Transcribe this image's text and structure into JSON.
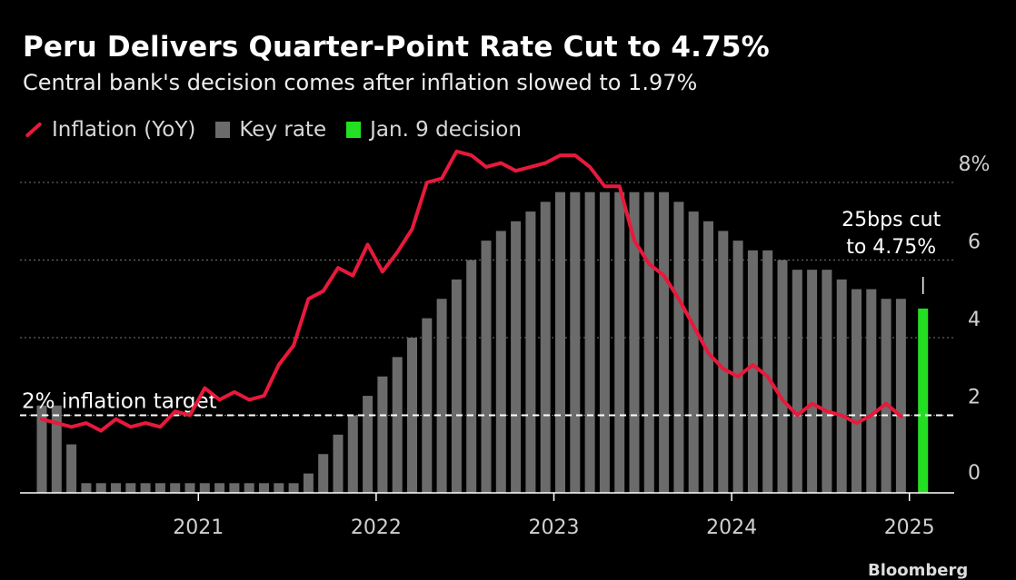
{
  "header": {
    "title": "Peru Delivers Quarter-Point Rate Cut to 4.75%",
    "subtitle": "Central bank's decision comes after inflation slowed to 1.97%"
  },
  "legend": {
    "items": [
      {
        "label": "Inflation (YoY)",
        "kind": "line",
        "color": "#e8193c"
      },
      {
        "label": "Key rate",
        "kind": "bar",
        "color": "#6b6b6b"
      },
      {
        "label": "Jan. 9 decision",
        "kind": "bar",
        "color": "#22e021"
      }
    ]
  },
  "footer": {
    "fragment": "Bloomberg"
  },
  "chart_data": {
    "type": "bar",
    "title": "Peru Delivers Quarter-Point Rate Cut to 4.75%",
    "ylim": [
      0,
      8
    ],
    "yticks": [
      {
        "value": 0,
        "label": "0"
      },
      {
        "value": 2,
        "label": "2"
      },
      {
        "value": 4,
        "label": "4"
      },
      {
        "value": 6,
        "label": "6"
      },
      {
        "value": 8,
        "label": "8%"
      }
    ],
    "xticks": [
      {
        "date": "2021-01",
        "label": "2021"
      },
      {
        "date": "2022-01",
        "label": "2022"
      },
      {
        "date": "2023-01",
        "label": "2023"
      },
      {
        "date": "2024-01",
        "label": "2024"
      },
      {
        "date": "2025-01",
        "label": "2025"
      }
    ],
    "grid": true,
    "legend_position": "top-left",
    "target": {
      "value": 2,
      "label": "2% inflation target"
    },
    "annotation": {
      "text_lines": [
        "25bps cut",
        "to 4.75%"
      ],
      "date": "2025-01"
    },
    "x_range": [
      "2020-02",
      "2025-02"
    ],
    "series": [
      {
        "name": "Key rate",
        "type": "bar",
        "color": "#6b6b6b",
        "x": [
          "2020-02",
          "2020-03",
          "2020-04",
          "2020-05",
          "2020-06",
          "2020-07",
          "2020-08",
          "2020-09",
          "2020-10",
          "2020-11",
          "2020-12",
          "2021-01",
          "2021-02",
          "2021-03",
          "2021-04",
          "2021-05",
          "2021-06",
          "2021-07",
          "2021-08",
          "2021-09",
          "2021-10",
          "2021-11",
          "2021-12",
          "2022-01",
          "2022-02",
          "2022-03",
          "2022-04",
          "2022-05",
          "2022-06",
          "2022-07",
          "2022-08",
          "2022-09",
          "2022-10",
          "2022-11",
          "2022-12",
          "2023-01",
          "2023-02",
          "2023-03",
          "2023-04",
          "2023-05",
          "2023-06",
          "2023-07",
          "2023-08",
          "2023-09",
          "2023-10",
          "2023-11",
          "2023-12",
          "2024-01",
          "2024-02",
          "2024-03",
          "2024-04",
          "2024-05",
          "2024-06",
          "2024-07",
          "2024-08",
          "2024-09",
          "2024-10",
          "2024-11",
          "2024-12"
        ],
        "values": [
          2.25,
          2.25,
          1.25,
          0.25,
          0.25,
          0.25,
          0.25,
          0.25,
          0.25,
          0.25,
          0.25,
          0.25,
          0.25,
          0.25,
          0.25,
          0.25,
          0.25,
          0.25,
          0.5,
          1.0,
          1.5,
          2.0,
          2.5,
          3.0,
          3.5,
          4.0,
          4.5,
          5.0,
          5.5,
          6.0,
          6.5,
          6.75,
          7.0,
          7.25,
          7.5,
          7.75,
          7.75,
          7.75,
          7.75,
          7.75,
          7.75,
          7.75,
          7.75,
          7.5,
          7.25,
          7.0,
          6.75,
          6.5,
          6.25,
          6.25,
          6.0,
          5.75,
          5.75,
          5.75,
          5.5,
          5.25,
          5.25,
          5.0,
          5.0
        ]
      },
      {
        "name": "Jan. 9 decision",
        "type": "bar",
        "color": "#22e021",
        "x": [
          "2025-01"
        ],
        "values": [
          4.75
        ]
      },
      {
        "name": "Inflation (YoY)",
        "type": "line",
        "color": "#e8193c",
        "x": [
          "2020-02",
          "2020-03",
          "2020-04",
          "2020-05",
          "2020-06",
          "2020-07",
          "2020-08",
          "2020-09",
          "2020-10",
          "2020-11",
          "2020-12",
          "2021-01",
          "2021-02",
          "2021-03",
          "2021-04",
          "2021-05",
          "2021-06",
          "2021-07",
          "2021-08",
          "2021-09",
          "2021-10",
          "2021-11",
          "2021-12",
          "2022-01",
          "2022-02",
          "2022-03",
          "2022-04",
          "2022-05",
          "2022-06",
          "2022-07",
          "2022-08",
          "2022-09",
          "2022-10",
          "2022-11",
          "2022-12",
          "2023-01",
          "2023-02",
          "2023-03",
          "2023-04",
          "2023-05",
          "2023-06",
          "2023-07",
          "2023-08",
          "2023-09",
          "2023-10",
          "2023-11",
          "2023-12",
          "2024-01",
          "2024-02",
          "2024-03",
          "2024-04",
          "2024-05",
          "2024-06",
          "2024-07",
          "2024-08",
          "2024-09",
          "2024-10",
          "2024-11",
          "2024-12"
        ],
        "values": [
          1.9,
          1.8,
          1.7,
          1.8,
          1.6,
          1.9,
          1.7,
          1.8,
          1.7,
          2.1,
          2.0,
          2.7,
          2.4,
          2.6,
          2.4,
          2.5,
          3.3,
          3.8,
          5.0,
          5.2,
          5.8,
          5.6,
          6.4,
          5.7,
          6.2,
          6.8,
          8.0,
          8.1,
          8.8,
          8.7,
          8.4,
          8.5,
          8.3,
          8.4,
          8.5,
          8.7,
          8.7,
          8.4,
          7.9,
          7.9,
          6.5,
          5.9,
          5.6,
          5.0,
          4.3,
          3.6,
          3.2,
          3.0,
          3.3,
          3.0,
          2.4,
          2.0,
          2.3,
          2.1,
          2.0,
          1.8,
          2.0,
          2.3,
          1.97
        ]
      }
    ]
  }
}
